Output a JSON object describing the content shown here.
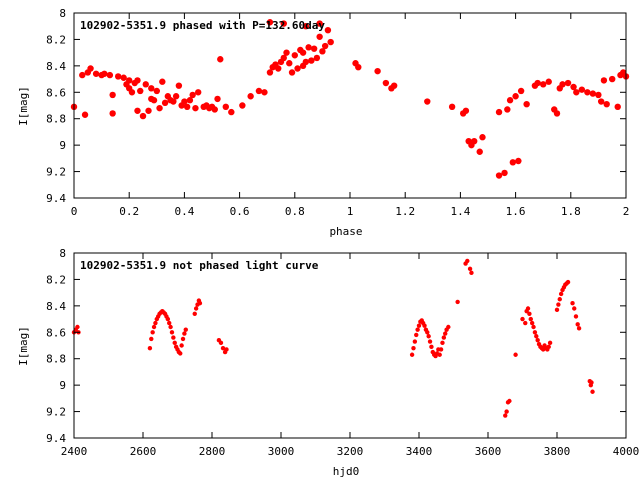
{
  "chart_data": [
    {
      "type": "scatter",
      "title": "102902-5351.9 phased with P=132.60day",
      "xlabel": "phase",
      "ylabel": "I[mag]",
      "xlim": [
        0,
        2
      ],
      "ylim": [
        8,
        9.4
      ],
      "y_inverted": true,
      "grid": false,
      "marker_color": "#ff0000",
      "xticks": [
        "0",
        "0.2",
        "0.4",
        "0.6",
        "0.8",
        "1",
        "1.2",
        "1.4",
        "1.6",
        "1.8",
        "2"
      ],
      "yticks": [
        "8",
        "8.2",
        "8.4",
        "8.6",
        "8.8",
        "9",
        "9.2",
        "9.4"
      ],
      "points": [
        [
          0.0,
          8.71
        ],
        [
          0.03,
          8.47
        ],
        [
          0.04,
          8.77
        ],
        [
          0.05,
          8.45
        ],
        [
          0.06,
          8.42
        ],
        [
          0.08,
          8.46
        ],
        [
          0.1,
          8.47
        ],
        [
          0.11,
          8.46
        ],
        [
          0.13,
          8.47
        ],
        [
          0.14,
          8.62
        ],
        [
          0.14,
          8.76
        ],
        [
          0.16,
          8.48
        ],
        [
          0.18,
          8.49
        ],
        [
          0.19,
          8.54
        ],
        [
          0.2,
          8.51
        ],
        [
          0.2,
          8.57
        ],
        [
          0.21,
          8.6
        ],
        [
          0.22,
          8.53
        ],
        [
          0.23,
          8.74
        ],
        [
          0.23,
          8.51
        ],
        [
          0.24,
          8.59
        ],
        [
          0.25,
          8.78
        ],
        [
          0.26,
          8.54
        ],
        [
          0.27,
          8.74
        ],
        [
          0.28,
          8.65
        ],
        [
          0.28,
          8.57
        ],
        [
          0.29,
          8.66
        ],
        [
          0.3,
          8.59
        ],
        [
          0.31,
          8.72
        ],
        [
          0.32,
          8.52
        ],
        [
          0.33,
          8.68
        ],
        [
          0.34,
          8.63
        ],
        [
          0.35,
          8.66
        ],
        [
          0.36,
          8.67
        ],
        [
          0.37,
          8.63
        ],
        [
          0.38,
          8.55
        ],
        [
          0.39,
          8.7
        ],
        [
          0.4,
          8.67
        ],
        [
          0.41,
          8.71
        ],
        [
          0.42,
          8.66
        ],
        [
          0.43,
          8.62
        ],
        [
          0.44,
          8.72
        ],
        [
          0.45,
          8.6
        ],
        [
          0.47,
          8.71
        ],
        [
          0.48,
          8.7
        ],
        [
          0.49,
          8.72
        ],
        [
          0.5,
          8.71
        ],
        [
          0.51,
          8.73
        ],
        [
          0.52,
          8.65
        ],
        [
          0.53,
          8.35
        ],
        [
          0.55,
          8.71
        ],
        [
          0.57,
          8.75
        ],
        [
          0.61,
          8.7
        ],
        [
          0.64,
          8.63
        ],
        [
          0.67,
          8.59
        ],
        [
          0.69,
          8.6
        ],
        [
          0.71,
          8.45
        ],
        [
          0.72,
          8.41
        ],
        [
          0.73,
          8.39
        ],
        [
          0.74,
          8.42
        ],
        [
          0.75,
          8.37
        ],
        [
          0.76,
          8.34
        ],
        [
          0.77,
          8.3
        ],
        [
          0.78,
          8.38
        ],
        [
          0.79,
          8.45
        ],
        [
          0.8,
          8.32
        ],
        [
          0.81,
          8.42
        ],
        [
          0.82,
          8.28
        ],
        [
          0.83,
          8.4
        ],
        [
          0.83,
          8.3
        ],
        [
          0.84,
          8.37
        ],
        [
          0.85,
          8.26
        ],
        [
          0.86,
          8.36
        ],
        [
          0.87,
          8.27
        ],
        [
          0.88,
          8.34
        ],
        [
          0.89,
          8.18
        ],
        [
          0.9,
          8.29
        ],
        [
          0.91,
          8.25
        ],
        [
          0.93,
          8.22
        ],
        [
          0.92,
          8.13
        ],
        [
          0.89,
          8.08
        ],
        [
          0.84,
          8.1
        ],
        [
          0.76,
          8.08
        ],
        [
          0.71,
          8.07
        ],
        [
          1.02,
          8.38
        ],
        [
          1.03,
          8.41
        ],
        [
          1.1,
          8.44
        ],
        [
          1.13,
          8.53
        ],
        [
          1.15,
          8.57
        ],
        [
          1.16,
          8.55
        ],
        [
          1.28,
          8.67
        ],
        [
          1.37,
          8.71
        ],
        [
          1.41,
          8.76
        ],
        [
          1.42,
          8.74
        ],
        [
          1.43,
          8.97
        ],
        [
          1.44,
          9.0
        ],
        [
          1.45,
          8.97
        ],
        [
          1.47,
          9.05
        ],
        [
          1.48,
          8.94
        ],
        [
          1.54,
          8.75
        ],
        [
          1.54,
          9.23
        ],
        [
          1.56,
          9.21
        ],
        [
          1.57,
          8.73
        ],
        [
          1.58,
          8.66
        ],
        [
          1.59,
          9.13
        ],
        [
          1.6,
          8.63
        ],
        [
          1.61,
          9.12
        ],
        [
          1.62,
          8.59
        ],
        [
          1.64,
          8.69
        ],
        [
          1.67,
          8.55
        ],
        [
          1.68,
          8.53
        ],
        [
          1.7,
          8.54
        ],
        [
          1.72,
          8.52
        ],
        [
          1.74,
          8.73
        ],
        [
          1.75,
          8.76
        ],
        [
          1.76,
          8.57
        ],
        [
          1.77,
          8.54
        ],
        [
          1.79,
          8.53
        ],
        [
          1.81,
          8.56
        ],
        [
          1.82,
          8.6
        ],
        [
          1.84,
          8.58
        ],
        [
          1.86,
          8.6
        ],
        [
          1.88,
          8.61
        ],
        [
          1.9,
          8.62
        ],
        [
          1.91,
          8.67
        ],
        [
          1.92,
          8.51
        ],
        [
          1.93,
          8.69
        ],
        [
          1.95,
          8.5
        ],
        [
          1.97,
          8.71
        ],
        [
          1.98,
          8.47
        ],
        [
          1.99,
          8.45
        ],
        [
          2.0,
          8.48
        ]
      ]
    },
    {
      "type": "scatter",
      "title": "102902-5351.9 not phased light curve",
      "xlabel": "hjd0",
      "ylabel": "I[mag]",
      "xlim": [
        2400,
        4000
      ],
      "ylim": [
        8,
        9.4
      ],
      "y_inverted": true,
      "grid": false,
      "marker_color": "#ff0000",
      "xticks": [
        "2400",
        "2600",
        "2800",
        "3000",
        "3200",
        "3400",
        "3600",
        "3800",
        "4000"
      ],
      "yticks": [
        "8",
        "8.2",
        "8.4",
        "8.6",
        "8.8",
        "9",
        "9.2",
        "9.4"
      ],
      "points": [
        [
          2400,
          8.6
        ],
        [
          2405,
          8.58
        ],
        [
          2410,
          8.56
        ],
        [
          2413,
          8.6
        ],
        [
          2620,
          8.72
        ],
        [
          2624,
          8.65
        ],
        [
          2628,
          8.6
        ],
        [
          2632,
          8.56
        ],
        [
          2636,
          8.53
        ],
        [
          2640,
          8.5
        ],
        [
          2644,
          8.48
        ],
        [
          2648,
          8.46
        ],
        [
          2652,
          8.45
        ],
        [
          2656,
          8.44
        ],
        [
          2660,
          8.45
        ],
        [
          2664,
          8.46
        ],
        [
          2668,
          8.48
        ],
        [
          2672,
          8.5
        ],
        [
          2676,
          8.53
        ],
        [
          2680,
          8.56
        ],
        [
          2684,
          8.6
        ],
        [
          2688,
          8.64
        ],
        [
          2692,
          8.68
        ],
        [
          2696,
          8.71
        ],
        [
          2700,
          8.73
        ],
        [
          2704,
          8.75
        ],
        [
          2708,
          8.76
        ],
        [
          2712,
          8.7
        ],
        [
          2716,
          8.65
        ],
        [
          2720,
          8.61
        ],
        [
          2724,
          8.58
        ],
        [
          2750,
          8.46
        ],
        [
          2754,
          8.42
        ],
        [
          2758,
          8.39
        ],
        [
          2762,
          8.36
        ],
        [
          2765,
          8.38
        ],
        [
          2820,
          8.66
        ],
        [
          2826,
          8.68
        ],
        [
          2832,
          8.72
        ],
        [
          2838,
          8.75
        ],
        [
          2842,
          8.73
        ],
        [
          3380,
          8.77
        ],
        [
          3384,
          8.72
        ],
        [
          3388,
          8.67
        ],
        [
          3392,
          8.62
        ],
        [
          3396,
          8.58
        ],
        [
          3400,
          8.55
        ],
        [
          3404,
          8.52
        ],
        [
          3408,
          8.51
        ],
        [
          3412,
          8.53
        ],
        [
          3416,
          8.55
        ],
        [
          3420,
          8.58
        ],
        [
          3424,
          8.6
        ],
        [
          3428,
          8.63
        ],
        [
          3432,
          8.67
        ],
        [
          3436,
          8.71
        ],
        [
          3440,
          8.75
        ],
        [
          3444,
          8.77
        ],
        [
          3448,
          8.78
        ],
        [
          3452,
          8.76
        ],
        [
          3456,
          8.73
        ],
        [
          3460,
          8.77
        ],
        [
          3464,
          8.73
        ],
        [
          3468,
          8.68
        ],
        [
          3472,
          8.64
        ],
        [
          3476,
          8.61
        ],
        [
          3480,
          8.58
        ],
        [
          3485,
          8.56
        ],
        [
          3512,
          8.37
        ],
        [
          3535,
          8.08
        ],
        [
          3540,
          8.06
        ],
        [
          3548,
          8.12
        ],
        [
          3552,
          8.15
        ],
        [
          3650,
          9.23
        ],
        [
          3654,
          9.2
        ],
        [
          3658,
          9.13
        ],
        [
          3662,
          9.12
        ],
        [
          3680,
          8.77
        ],
        [
          3700,
          8.5
        ],
        [
          3708,
          8.53
        ],
        [
          3712,
          8.44
        ],
        [
          3716,
          8.42
        ],
        [
          3720,
          8.46
        ],
        [
          3724,
          8.5
        ],
        [
          3728,
          8.53
        ],
        [
          3732,
          8.56
        ],
        [
          3736,
          8.6
        ],
        [
          3740,
          8.63
        ],
        [
          3744,
          8.66
        ],
        [
          3748,
          8.69
        ],
        [
          3752,
          8.71
        ],
        [
          3756,
          8.72
        ],
        [
          3760,
          8.73
        ],
        [
          3764,
          8.7
        ],
        [
          3768,
          8.72
        ],
        [
          3772,
          8.73
        ],
        [
          3776,
          8.71
        ],
        [
          3780,
          8.68
        ],
        [
          3800,
          8.43
        ],
        [
          3804,
          8.39
        ],
        [
          3808,
          8.35
        ],
        [
          3812,
          8.31
        ],
        [
          3816,
          8.28
        ],
        [
          3820,
          8.26
        ],
        [
          3824,
          8.24
        ],
        [
          3828,
          8.23
        ],
        [
          3832,
          8.22
        ],
        [
          3845,
          8.38
        ],
        [
          3850,
          8.42
        ],
        [
          3855,
          8.48
        ],
        [
          3860,
          8.54
        ],
        [
          3864,
          8.57
        ],
        [
          3895,
          8.97
        ],
        [
          3898,
          9.0
        ],
        [
          3900,
          8.98
        ],
        [
          3903,
          9.05
        ]
      ]
    }
  ]
}
